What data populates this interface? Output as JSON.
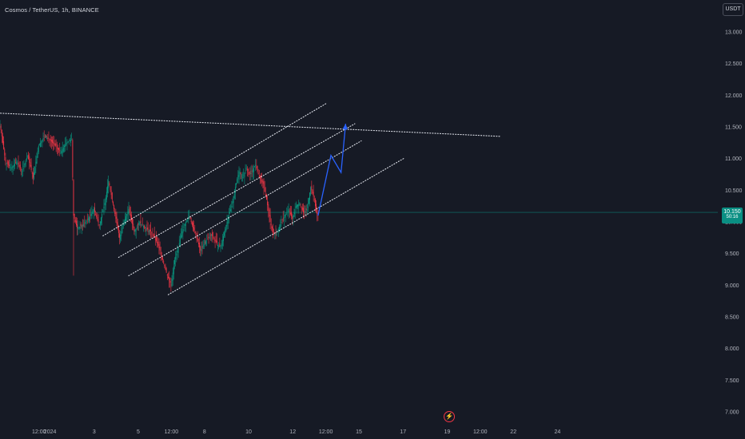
{
  "header": {
    "symbol_label": "Cosmos / TetherUS, 1h, BINANCE",
    "currency_button": "USDT"
  },
  "price_badge": {
    "value": "10.150",
    "countdown": "50:16"
  },
  "colors": {
    "background": "#161a25",
    "up_candle": "#089981",
    "down_candle": "#f23645",
    "trendline": "#e0e3eb",
    "projection": "#2962ff",
    "price_line": "#0a8f83"
  },
  "events": {
    "icon": "lightning-icon",
    "glyph": "⚡"
  },
  "chart_data": {
    "type": "candlestick",
    "title": "",
    "ylim": [
      7.0,
      13.25
    ],
    "y_ticks": [
      "13.000",
      "12.500",
      "12.000",
      "11.500",
      "11.000",
      "10.500",
      "10.000",
      "9.500",
      "9.000",
      "8.500",
      "8.000",
      "7.500",
      "7.000"
    ],
    "x_ticks": [
      {
        "label": "12:00",
        "hours": 12
      },
      {
        "label": "2024",
        "hours": 24
      },
      {
        "label": "3",
        "hours": 72
      },
      {
        "label": "5",
        "hours": 120
      },
      {
        "label": "12:00",
        "hours": 156
      },
      {
        "label": "8",
        "hours": 192
      },
      {
        "label": "10",
        "hours": 240
      },
      {
        "label": "12",
        "hours": 288
      },
      {
        "label": "12:00",
        "hours": 324
      },
      {
        "label": "15",
        "hours": 360
      },
      {
        "label": "17",
        "hours": 408
      },
      {
        "label": "19",
        "hours": 456
      },
      {
        "label": "12:00",
        "hours": 492
      },
      {
        "label": "22",
        "hours": 528
      },
      {
        "label": "24",
        "hours": 576
      }
    ],
    "current_price": 10.15,
    "price_anchors": [
      [
        0,
        11.55
      ],
      [
        6,
        10.95
      ],
      [
        12,
        10.85
      ],
      [
        18,
        10.95
      ],
      [
        24,
        10.8
      ],
      [
        30,
        11.05
      ],
      [
        36,
        10.7
      ],
      [
        42,
        11.2
      ],
      [
        48,
        11.35
      ],
      [
        54,
        11.3
      ],
      [
        60,
        11.2
      ],
      [
        66,
        11.1
      ],
      [
        72,
        11.25
      ],
      [
        78,
        11.3
      ],
      [
        80,
        10.1
      ],
      [
        84,
        9.9
      ],
      [
        90,
        9.95
      ],
      [
        96,
        10.05
      ],
      [
        102,
        10.2
      ],
      [
        108,
        9.95
      ],
      [
        114,
        10.3
      ],
      [
        118,
        10.65
      ],
      [
        124,
        10.2
      ],
      [
        130,
        9.75
      ],
      [
        136,
        10.05
      ],
      [
        140,
        10.2
      ],
      [
        146,
        9.85
      ],
      [
        152,
        10.0
      ],
      [
        158,
        9.9
      ],
      [
        164,
        9.85
      ],
      [
        170,
        9.7
      ],
      [
        174,
        9.55
      ],
      [
        178,
        9.35
      ],
      [
        182,
        9.15
      ],
      [
        186,
        9.0
      ],
      [
        190,
        9.4
      ],
      [
        194,
        9.6
      ],
      [
        198,
        9.85
      ],
      [
        202,
        10.0
      ],
      [
        206,
        10.1
      ],
      [
        210,
        9.9
      ],
      [
        214,
        9.75
      ],
      [
        218,
        9.55
      ],
      [
        224,
        9.7
      ],
      [
        230,
        9.8
      ],
      [
        236,
        9.65
      ],
      [
        240,
        9.6
      ],
      [
        246,
        9.95
      ],
      [
        252,
        10.25
      ],
      [
        256,
        10.55
      ],
      [
        260,
        10.8
      ],
      [
        264,
        10.7
      ],
      [
        268,
        10.85
      ],
      [
        272,
        10.75
      ],
      [
        278,
        10.9
      ],
      [
        282,
        10.7
      ],
      [
        286,
        10.6
      ],
      [
        290,
        10.35
      ],
      [
        294,
        10.0
      ],
      [
        298,
        9.8
      ],
      [
        302,
        9.85
      ],
      [
        306,
        10.0
      ],
      [
        310,
        10.1
      ],
      [
        314,
        10.2
      ],
      [
        318,
        10.05
      ],
      [
        322,
        10.25
      ],
      [
        326,
        10.3
      ],
      [
        330,
        10.15
      ],
      [
        334,
        10.2
      ],
      [
        338,
        10.55
      ],
      [
        342,
        10.35
      ],
      [
        344,
        10.15
      ],
      [
        346,
        10.1
      ]
    ],
    "trendlines": [
      {
        "name": "resistance",
        "p1": {
          "hours": -5,
          "price": 11.72
        },
        "p2": {
          "hours": 545,
          "price": 11.35
        }
      },
      {
        "name": "channel-upper",
        "p1": {
          "hours": 112,
          "price": 9.78
        },
        "p2": {
          "hours": 356,
          "price": 11.88
        }
      },
      {
        "name": "channel-mid-upper",
        "p1": {
          "hours": 129,
          "price": 9.44
        },
        "p2": {
          "hours": 386,
          "price": 11.55
        }
      },
      {
        "name": "channel-mid-lower",
        "p1": {
          "hours": 140,
          "price": 9.15
        },
        "p2": {
          "hours": 393,
          "price": 11.28
        }
      },
      {
        "name": "channel-lower",
        "p1": {
          "hours": 183,
          "price": 8.85
        },
        "p2": {
          "hours": 439,
          "price": 11.0
        }
      }
    ],
    "projection_path": [
      {
        "hours": 346,
        "price": 10.1
      },
      {
        "hours": 360,
        "price": 11.05
      },
      {
        "hours": 371,
        "price": 10.78
      },
      {
        "hours": 376,
        "price": 11.55
      }
    ]
  }
}
